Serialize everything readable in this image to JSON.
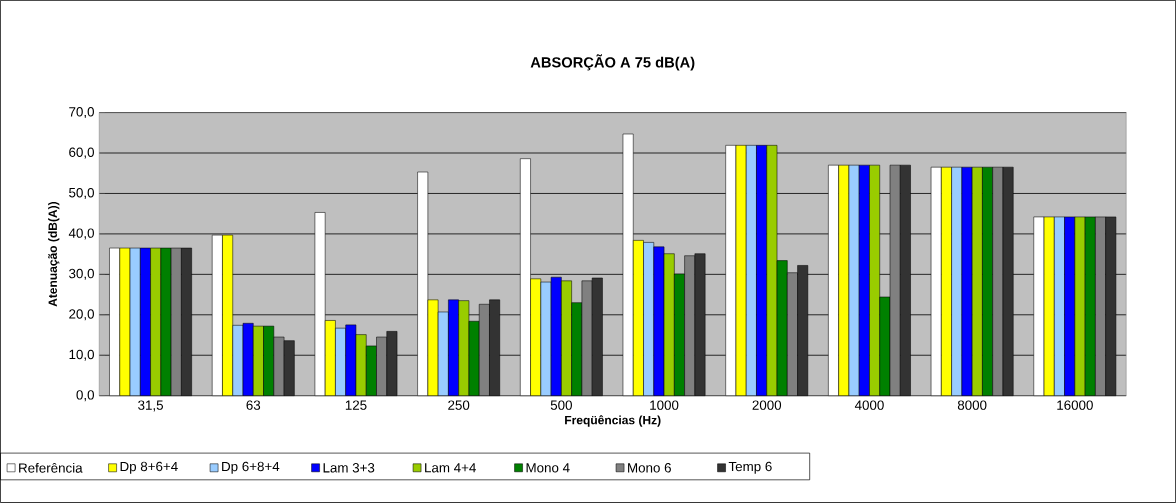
{
  "chart_data": {
    "type": "bar",
    "title": "ABSORÇÃO A 75 dB(A)",
    "xlabel": "Freqüências (Hz)",
    "ylabel": "Atenuação (dB(A))",
    "categories": [
      "31,5",
      "63",
      "125",
      "250",
      "500",
      "1000",
      "2000",
      "4000",
      "8000",
      "16000"
    ],
    "ylim": [
      0,
      70
    ],
    "yticks": [
      {
        "value": 0,
        "label": "0,0"
      },
      {
        "value": 10,
        "label": "10,0"
      },
      {
        "value": 20,
        "label": "20,0"
      },
      {
        "value": 30,
        "label": "30,0"
      },
      {
        "value": 40,
        "label": "40,0"
      },
      {
        "value": 50,
        "label": "50,0"
      },
      {
        "value": 60,
        "label": "60,0"
      },
      {
        "value": 70,
        "label": "70,0"
      }
    ],
    "grid": "y",
    "legend": "bottom",
    "series": [
      {
        "name": "Referência",
        "color": "#ffffff",
        "values": [
          36.5,
          39.7,
          45.3,
          55.3,
          58.6,
          64.7,
          61.9,
          57.0,
          56.5,
          44.2
        ]
      },
      {
        "name": "Dp 8+6+4",
        "color": "#ffff00",
        "values": [
          36.5,
          39.7,
          18.6,
          23.7,
          28.9,
          38.4,
          61.9,
          57.0,
          56.5,
          44.2
        ]
      },
      {
        "name": "Dp 6+8+4",
        "color": "#99ccff",
        "values": [
          36.5,
          17.4,
          16.7,
          20.7,
          28.1,
          37.9,
          61.9,
          57.0,
          56.5,
          44.2
        ]
      },
      {
        "name": "Lam 3+3",
        "color": "#0000ff",
        "values": [
          36.5,
          17.9,
          17.5,
          23.7,
          29.3,
          36.8,
          61.9,
          57.0,
          56.5,
          44.2
        ]
      },
      {
        "name": "Lam 4+4",
        "color": "#99cc00",
        "values": [
          36.5,
          17.2,
          15.1,
          23.5,
          28.4,
          35.1,
          61.9,
          57.0,
          56.5,
          44.2
        ]
      },
      {
        "name": "Mono 4",
        "color": "#008000",
        "values": [
          36.5,
          17.2,
          12.3,
          18.4,
          23.0,
          30.1,
          33.4,
          24.4,
          56.5,
          44.2
        ]
      },
      {
        "name": "Mono 6",
        "color": "#808080",
        "values": [
          36.5,
          14.5,
          14.5,
          22.6,
          28.4,
          34.6,
          30.4,
          57.0,
          56.5,
          44.2
        ]
      },
      {
        "name": "Temp 6",
        "color": "#333333",
        "values": [
          36.5,
          13.6,
          15.9,
          23.7,
          29.1,
          35.1,
          32.2,
          57.0,
          56.5,
          44.2
        ]
      }
    ]
  }
}
